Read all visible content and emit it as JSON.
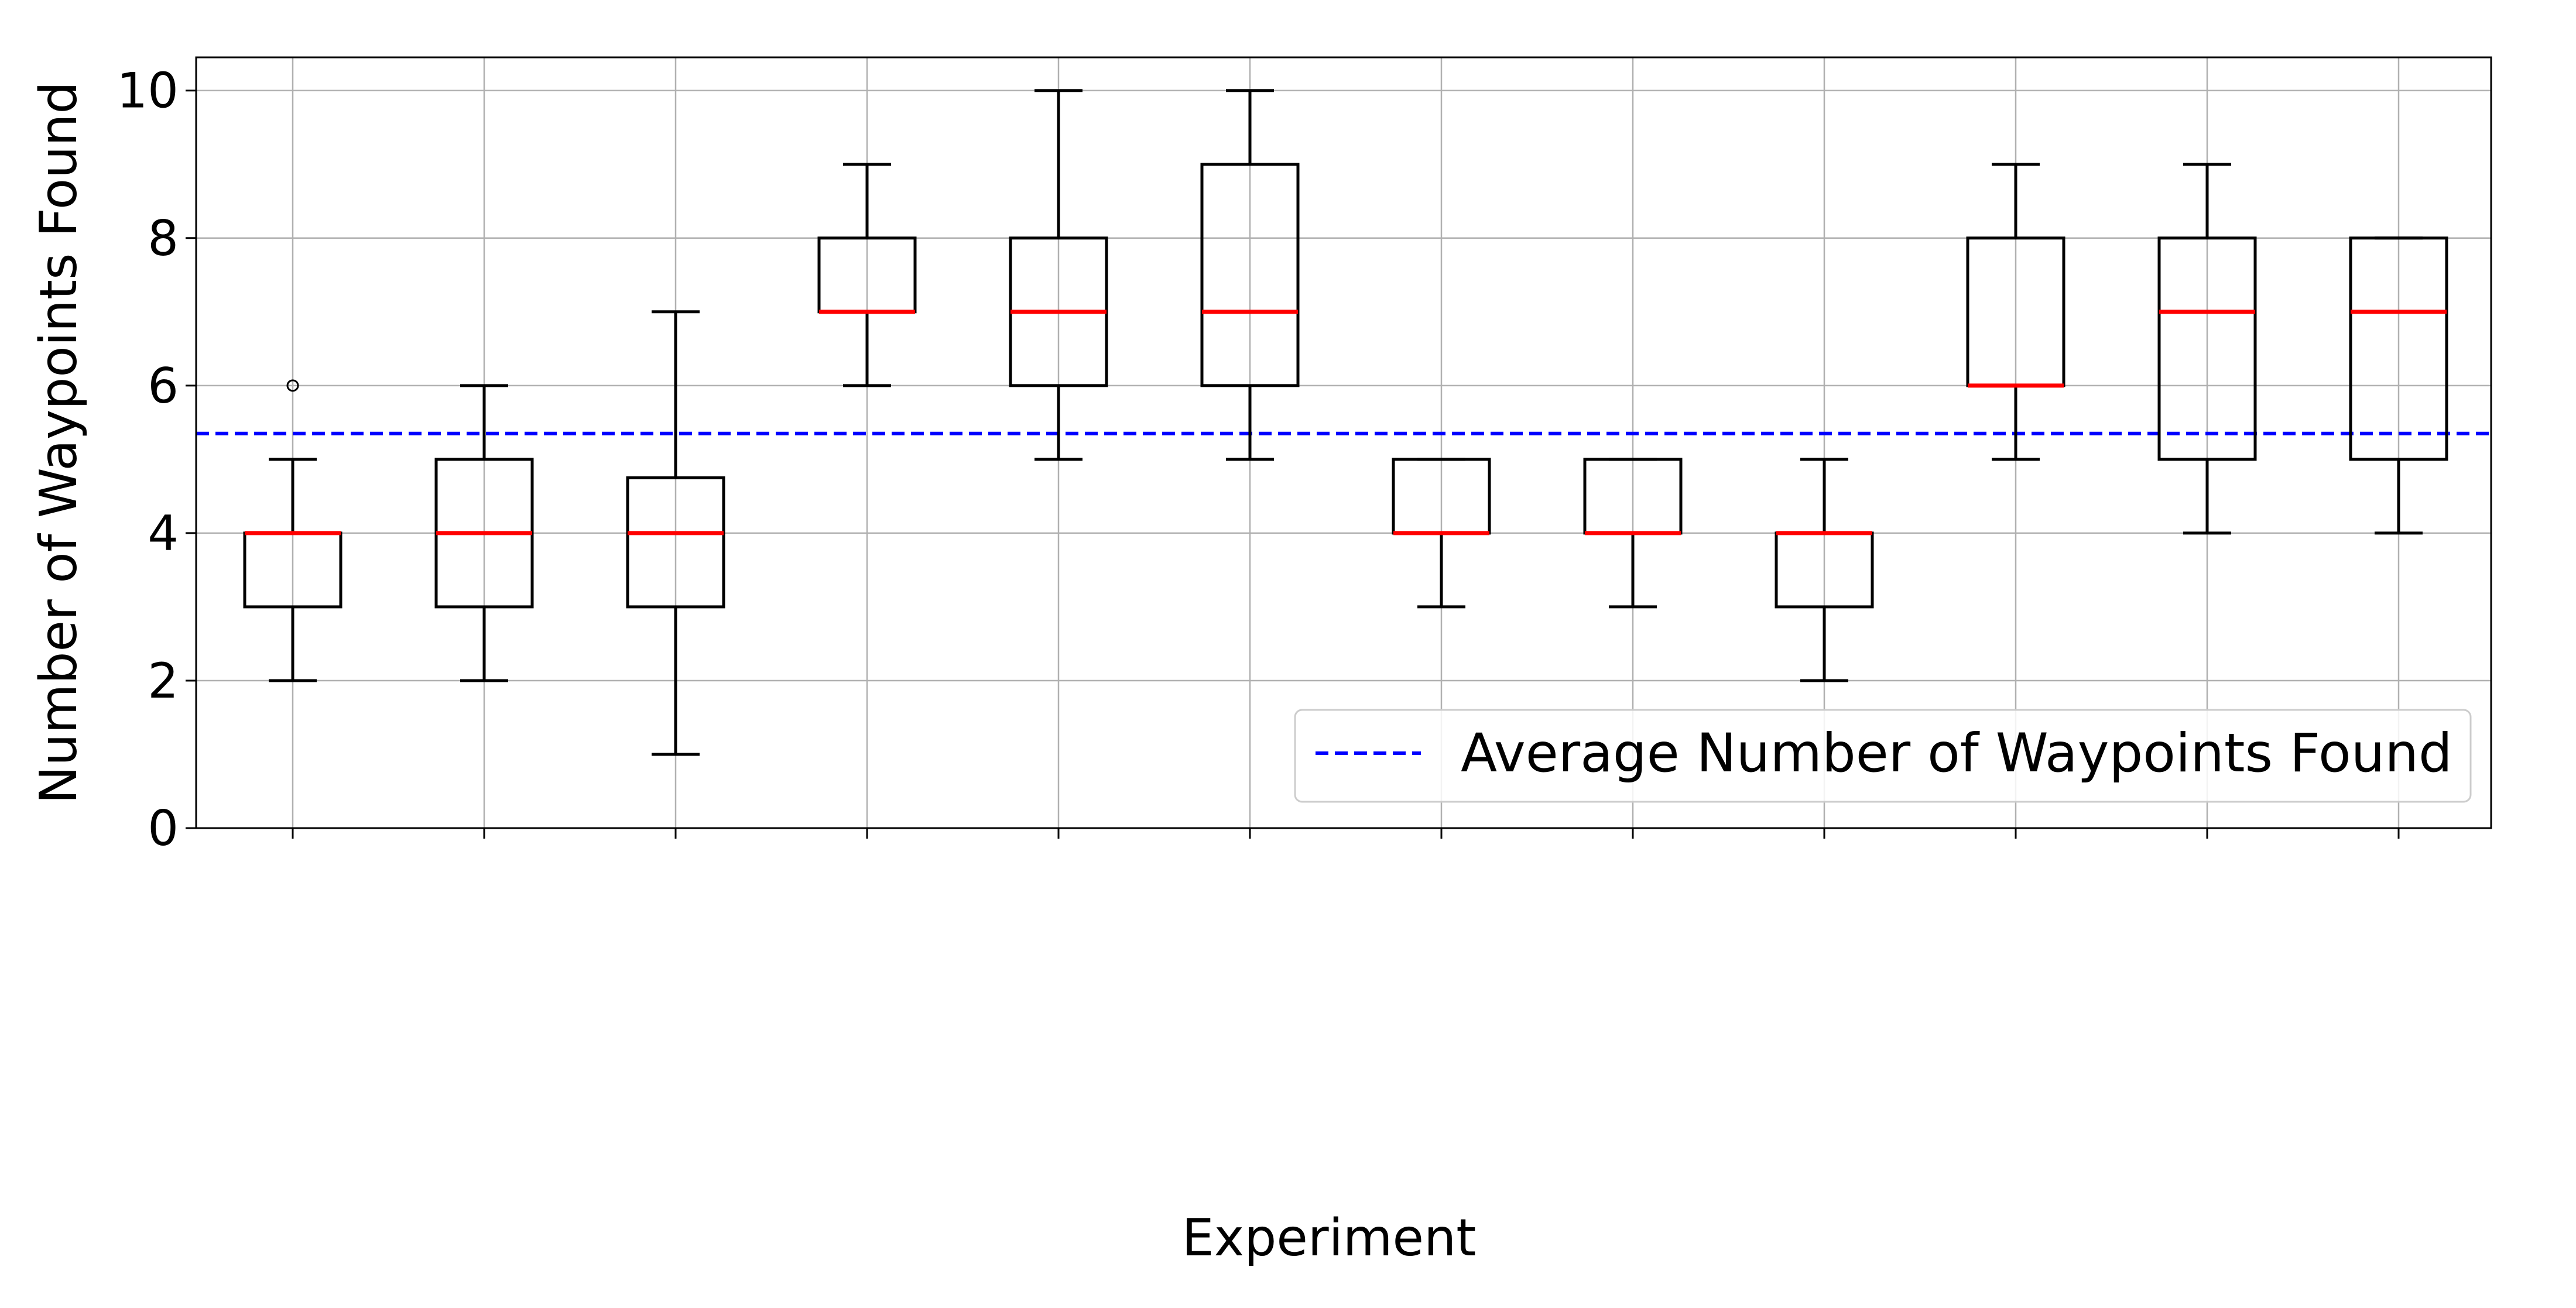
{
  "chart_data": {
    "type": "box",
    "title": "",
    "xlabel": "Experiment",
    "ylabel": "Number of Waypoints Found",
    "ylim": [
      0,
      10.45
    ],
    "yticks": [
      0,
      2,
      4,
      6,
      8,
      10
    ],
    "grid": true,
    "legend_position": "lower-right",
    "reference_line": {
      "label": "Average Number of Waypoints Found",
      "value": 5.35,
      "color": "#0000ff",
      "style": "dashed"
    },
    "box_color": "#000000",
    "median_color": "#ff0000",
    "boxes": [
      {
        "whisker_low": 2,
        "q1": 3,
        "median": 4,
        "q3": 4,
        "whisker_high": 5,
        "outliers": [
          6
        ]
      },
      {
        "whisker_low": 2,
        "q1": 3,
        "median": 4,
        "q3": 5,
        "whisker_high": 6,
        "outliers": []
      },
      {
        "whisker_low": 1,
        "q1": 3,
        "median": 4,
        "q3": 4.75,
        "whisker_high": 7,
        "outliers": []
      },
      {
        "whisker_low": 6,
        "q1": 7,
        "median": 7,
        "q3": 8,
        "whisker_high": 9,
        "outliers": []
      },
      {
        "whisker_low": 5,
        "q1": 6,
        "median": 7,
        "q3": 8,
        "whisker_high": 10,
        "outliers": []
      },
      {
        "whisker_low": 5,
        "q1": 6,
        "median": 7,
        "q3": 9,
        "whisker_high": 10,
        "outliers": []
      },
      {
        "whisker_low": 3,
        "q1": 4,
        "median": 4,
        "q3": 5,
        "whisker_high": 5,
        "outliers": []
      },
      {
        "whisker_low": 3,
        "q1": 4,
        "median": 4,
        "q3": 5,
        "whisker_high": 5,
        "outliers": []
      },
      {
        "whisker_low": 2,
        "q1": 3,
        "median": 4,
        "q3": 4,
        "whisker_high": 5,
        "outliers": []
      },
      {
        "whisker_low": 5,
        "q1": 6,
        "median": 6,
        "q3": 8,
        "whisker_high": 9,
        "outliers": []
      },
      {
        "whisker_low": 4,
        "q1": 5,
        "median": 7,
        "q3": 8,
        "whisker_high": 9,
        "outliers": []
      },
      {
        "whisker_low": 4,
        "q1": 5,
        "median": 7,
        "q3": 8,
        "whisker_high": 8,
        "outliers": []
      }
    ]
  }
}
